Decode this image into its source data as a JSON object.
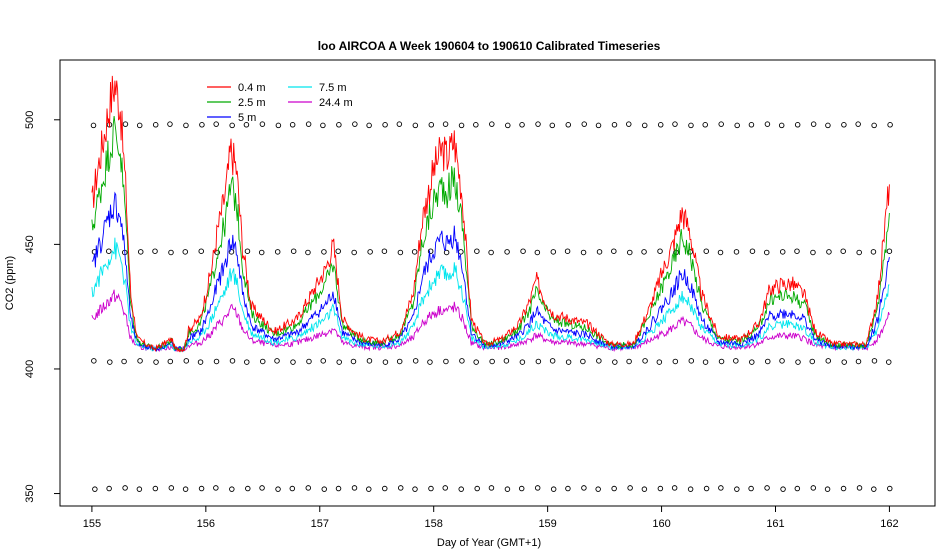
{
  "chart_data": {
    "type": "line",
    "title": "loo AIRCOA A  Week 190604 to 190610  Calibrated Timeseries",
    "xlabel": "Day of Year (GMT+1)",
    "ylabel": "CO2 (ppm)",
    "xlim": [
      154.72,
      162.4
    ],
    "ylim": [
      345,
      524
    ],
    "xticks": [
      155,
      156,
      157,
      158,
      159,
      160,
      161,
      162
    ],
    "yticks": [
      350,
      400,
      450,
      500
    ],
    "legend": "top-left",
    "series": [
      {
        "name": "0.4 m",
        "color": "#ff0000",
        "offset": 1.0
      },
      {
        "name": "2.5 m",
        "color": "#00aa00",
        "offset": 0.82
      },
      {
        "name": "5 m",
        "color": "#0000ff",
        "offset": 0.55
      },
      {
        "name": "7.5 m",
        "color": "#00e5ee",
        "offset": 0.38
      },
      {
        "name": "24.4 m",
        "color": "#cc00cc",
        "offset": 0.2
      }
    ],
    "base_series": [
      [
        155.0,
        466
      ],
      [
        155.05,
        480
      ],
      [
        155.1,
        492
      ],
      [
        155.15,
        505
      ],
      [
        155.2,
        515
      ],
      [
        155.25,
        505
      ],
      [
        155.3,
        470
      ],
      [
        155.34,
        430
      ],
      [
        155.4,
        412
      ],
      [
        155.55,
        408
      ],
      [
        155.7,
        412
      ],
      [
        155.78,
        402
      ],
      [
        155.85,
        416
      ],
      [
        155.95,
        420
      ],
      [
        156.05,
        440
      ],
      [
        156.1,
        455
      ],
      [
        156.17,
        470
      ],
      [
        156.22,
        488
      ],
      [
        156.27,
        480
      ],
      [
        156.32,
        450
      ],
      [
        156.4,
        425
      ],
      [
        156.6,
        415
      ],
      [
        156.8,
        420
      ],
      [
        156.95,
        432
      ],
      [
        157.05,
        440
      ],
      [
        157.12,
        450
      ],
      [
        157.2,
        420
      ],
      [
        157.3,
        415
      ],
      [
        157.4,
        412
      ],
      [
        157.55,
        411
      ],
      [
        157.7,
        415
      ],
      [
        157.82,
        430
      ],
      [
        157.9,
        460
      ],
      [
        158.0,
        480
      ],
      [
        158.07,
        488
      ],
      [
        158.12,
        485
      ],
      [
        158.18,
        492
      ],
      [
        158.25,
        470
      ],
      [
        158.33,
        420
      ],
      [
        158.45,
        410
      ],
      [
        158.6,
        412
      ],
      [
        158.75,
        418
      ],
      [
        158.85,
        428
      ],
      [
        158.9,
        436
      ],
      [
        158.97,
        428
      ],
      [
        159.05,
        422
      ],
      [
        159.2,
        420
      ],
      [
        159.35,
        418
      ],
      [
        159.55,
        410
      ],
      [
        159.75,
        410
      ],
      [
        159.9,
        425
      ],
      [
        160.0,
        438
      ],
      [
        160.1,
        450
      ],
      [
        160.18,
        463
      ],
      [
        160.25,
        455
      ],
      [
        160.35,
        430
      ],
      [
        160.5,
        413
      ],
      [
        160.7,
        412
      ],
      [
        160.85,
        418
      ],
      [
        160.95,
        432
      ],
      [
        161.05,
        434
      ],
      [
        161.15,
        434
      ],
      [
        161.25,
        430
      ],
      [
        161.35,
        415
      ],
      [
        161.5,
        410
      ],
      [
        161.7,
        410
      ],
      [
        161.8,
        410
      ],
      [
        161.9,
        430
      ],
      [
        162.0,
        475
      ]
    ],
    "reference_markers": {
      "y_levels": [
        498,
        447,
        403,
        352
      ],
      "x_start": 155.02,
      "x_end": 162.0,
      "count": 53
    }
  }
}
